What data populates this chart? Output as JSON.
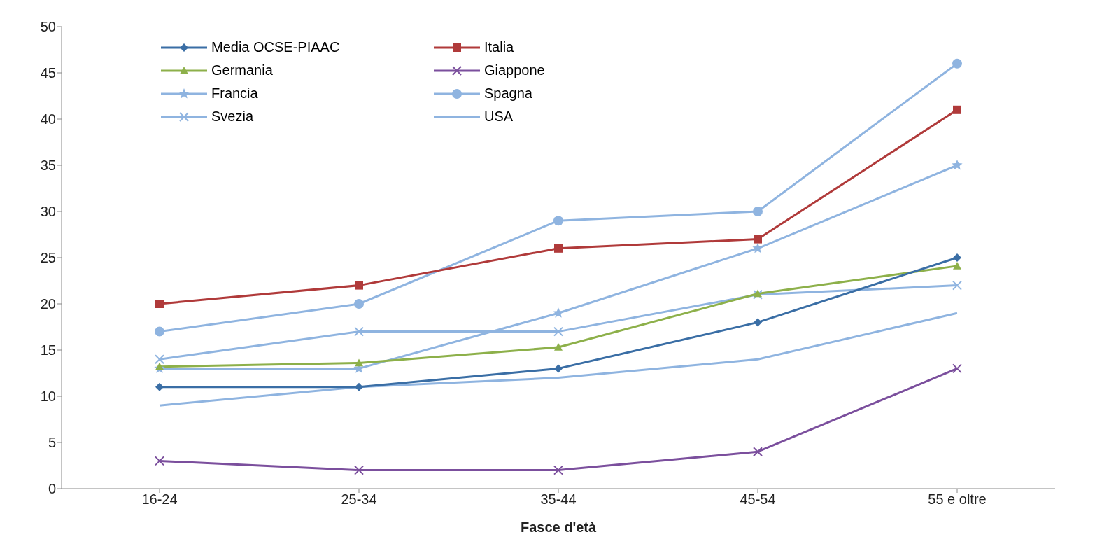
{
  "chart_data": {
    "type": "line",
    "xlabel": "Fasce d'età",
    "categories": [
      "16-24",
      "25-34",
      "35-44",
      "45-54",
      "55 e oltre"
    ],
    "series": [
      {
        "name": "Media OCSE-PIAAC",
        "color": "#3a6ea5",
        "marker": "diamond",
        "values": [
          11,
          11,
          13,
          18,
          25
        ]
      },
      {
        "name": "Italia",
        "color": "#b03a3a",
        "marker": "square",
        "values": [
          20,
          22,
          26,
          27,
          41
        ]
      },
      {
        "name": "Germania",
        "color": "#8db04a",
        "marker": "triangle",
        "values": [
          13.2,
          13.6,
          15.3,
          21.1,
          24.1
        ]
      },
      {
        "name": "Giappone",
        "color": "#7b4f9d",
        "marker": "cross",
        "values": [
          3,
          2,
          2,
          4,
          13
        ]
      },
      {
        "name": "Francia",
        "color": "#8fb4e0",
        "marker": "star",
        "values": [
          13,
          13,
          19,
          26,
          35
        ]
      },
      {
        "name": "Spagna",
        "color": "#8fb4e0",
        "marker": "circle",
        "values": [
          17,
          20,
          29,
          30,
          46
        ]
      },
      {
        "name": "Svezia",
        "color": "#8fb4e0",
        "marker": "cross",
        "values": [
          14,
          17,
          17,
          21,
          22
        ]
      },
      {
        "name": "USA",
        "color": "#8fb4e0",
        "marker": "none",
        "values": [
          9,
          11,
          12,
          14,
          19
        ]
      }
    ],
    "ylim": [
      0,
      50
    ],
    "yticks": [
      0,
      5,
      10,
      15,
      20,
      25,
      30,
      35,
      40,
      45,
      50
    ],
    "grid": false,
    "legend": "top left",
    "line_style": "solid"
  }
}
